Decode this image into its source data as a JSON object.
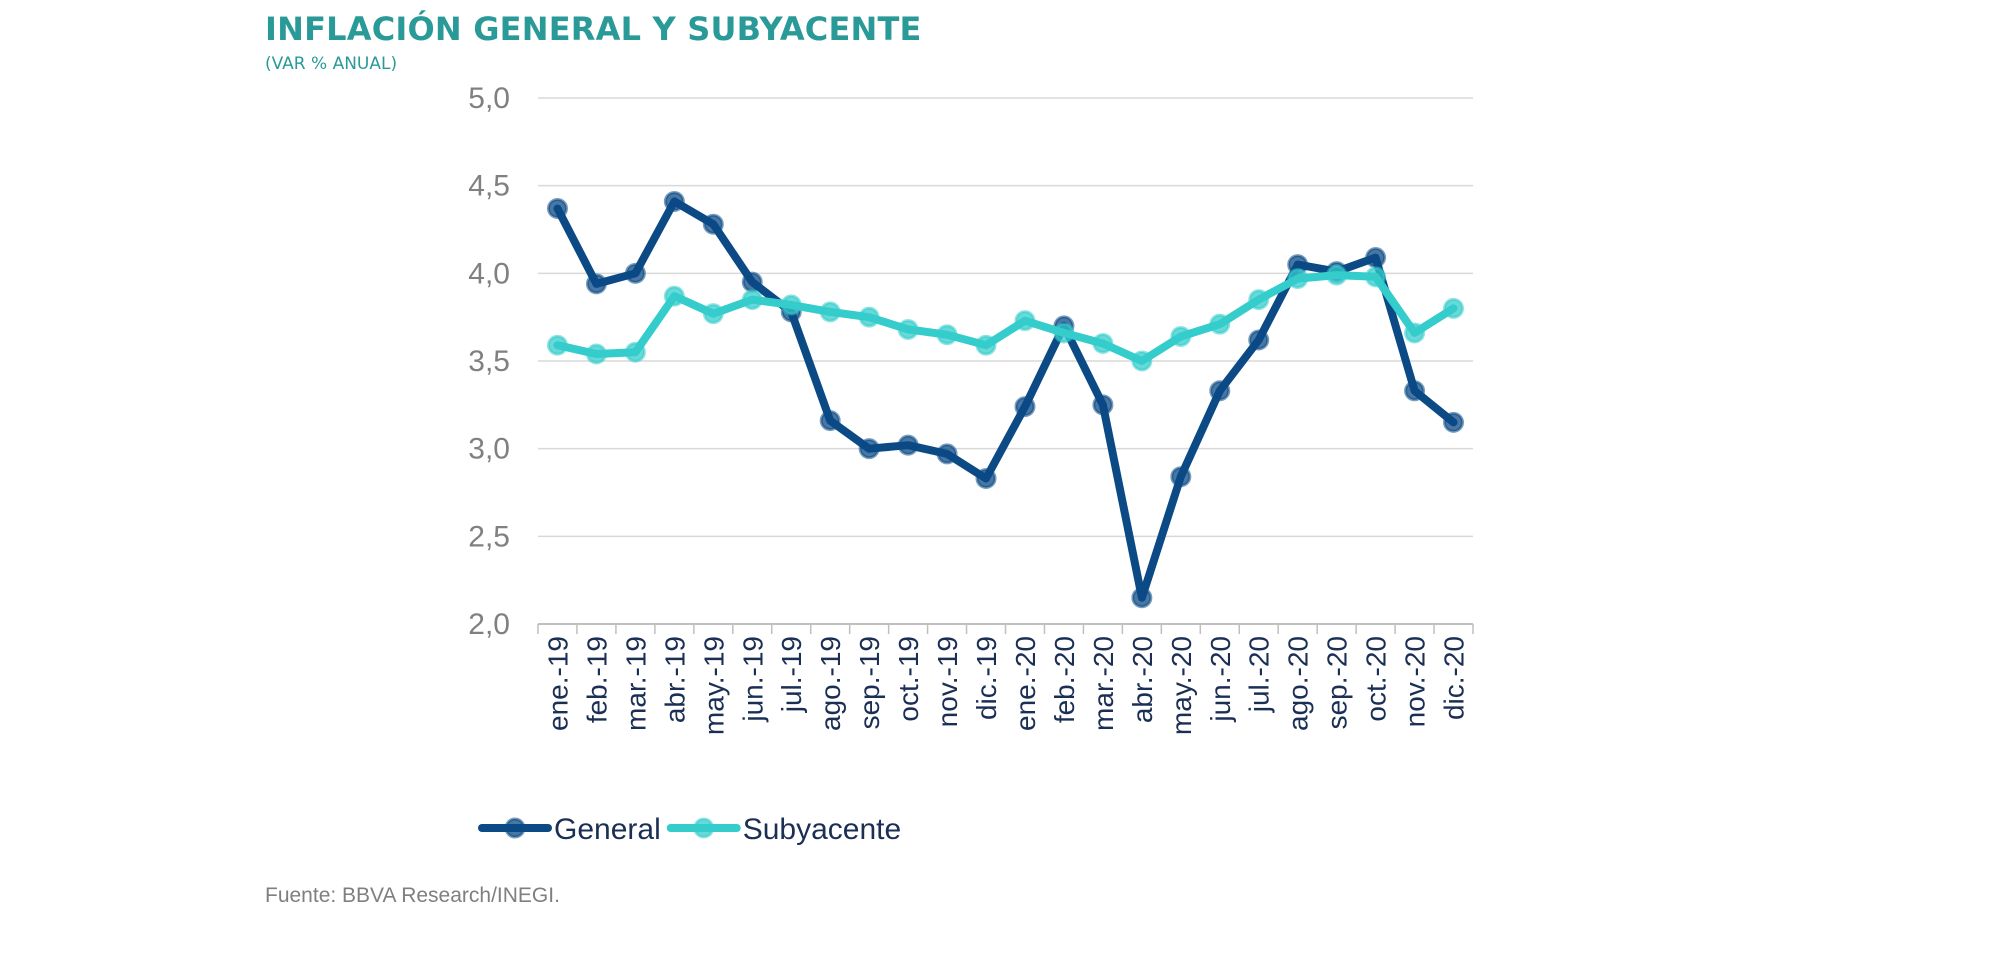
{
  "title": "INFLACIÓN GENERAL Y SUBYACENTE",
  "subtitle": "(VAR % ANUAL)",
  "source": "Fuente: BBVA Research/INEGI.",
  "colors": {
    "general": "#0b4a85",
    "subyacente": "#35cccc",
    "grid": "#d9d9d9",
    "title": "#2a9a98"
  },
  "chart_data": {
    "type": "line",
    "title": "INFLACIÓN GENERAL Y SUBYACENTE",
    "subtitle": "(VAR % ANUAL)",
    "xlabel": "",
    "ylabel": "",
    "ylim": [
      2.0,
      5.0
    ],
    "yticks": [
      "2,0",
      "2,5",
      "3,0",
      "3,5",
      "4,0",
      "4,5",
      "5,0"
    ],
    "ytick_values": [
      2.0,
      2.5,
      3.0,
      3.5,
      4.0,
      4.5,
      5.0
    ],
    "grid": true,
    "legend_position": "bottom-left",
    "categories": [
      "ene.-19",
      "feb.-19",
      "mar.-19",
      "abr.-19",
      "may.-19",
      "jun.-19",
      "jul.-19",
      "ago.-19",
      "sep.-19",
      "oct.-19",
      "nov.-19",
      "dic.-19",
      "ene.-20",
      "feb.-20",
      "mar.-20",
      "abr.-20",
      "may.-20",
      "jun.-20",
      "jul.-20",
      "ago.-20",
      "sep.-20",
      "oct.-20",
      "nov.-20",
      "dic.-20"
    ],
    "series": [
      {
        "name": "General",
        "color": "#0b4a85",
        "values": [
          4.37,
          3.94,
          4.0,
          4.41,
          4.28,
          3.95,
          3.78,
          3.16,
          3.0,
          3.02,
          2.97,
          2.83,
          3.24,
          3.7,
          3.25,
          2.15,
          2.84,
          3.33,
          3.62,
          4.05,
          4.01,
          4.09,
          3.33,
          3.15
        ]
      },
      {
        "name": "Subyacente",
        "color": "#35cccc",
        "values": [
          3.59,
          3.54,
          3.55,
          3.87,
          3.77,
          3.85,
          3.82,
          3.78,
          3.75,
          3.68,
          3.65,
          3.59,
          3.73,
          3.66,
          3.6,
          3.5,
          3.64,
          3.71,
          3.85,
          3.97,
          3.99,
          3.98,
          3.66,
          3.8
        ]
      }
    ]
  }
}
